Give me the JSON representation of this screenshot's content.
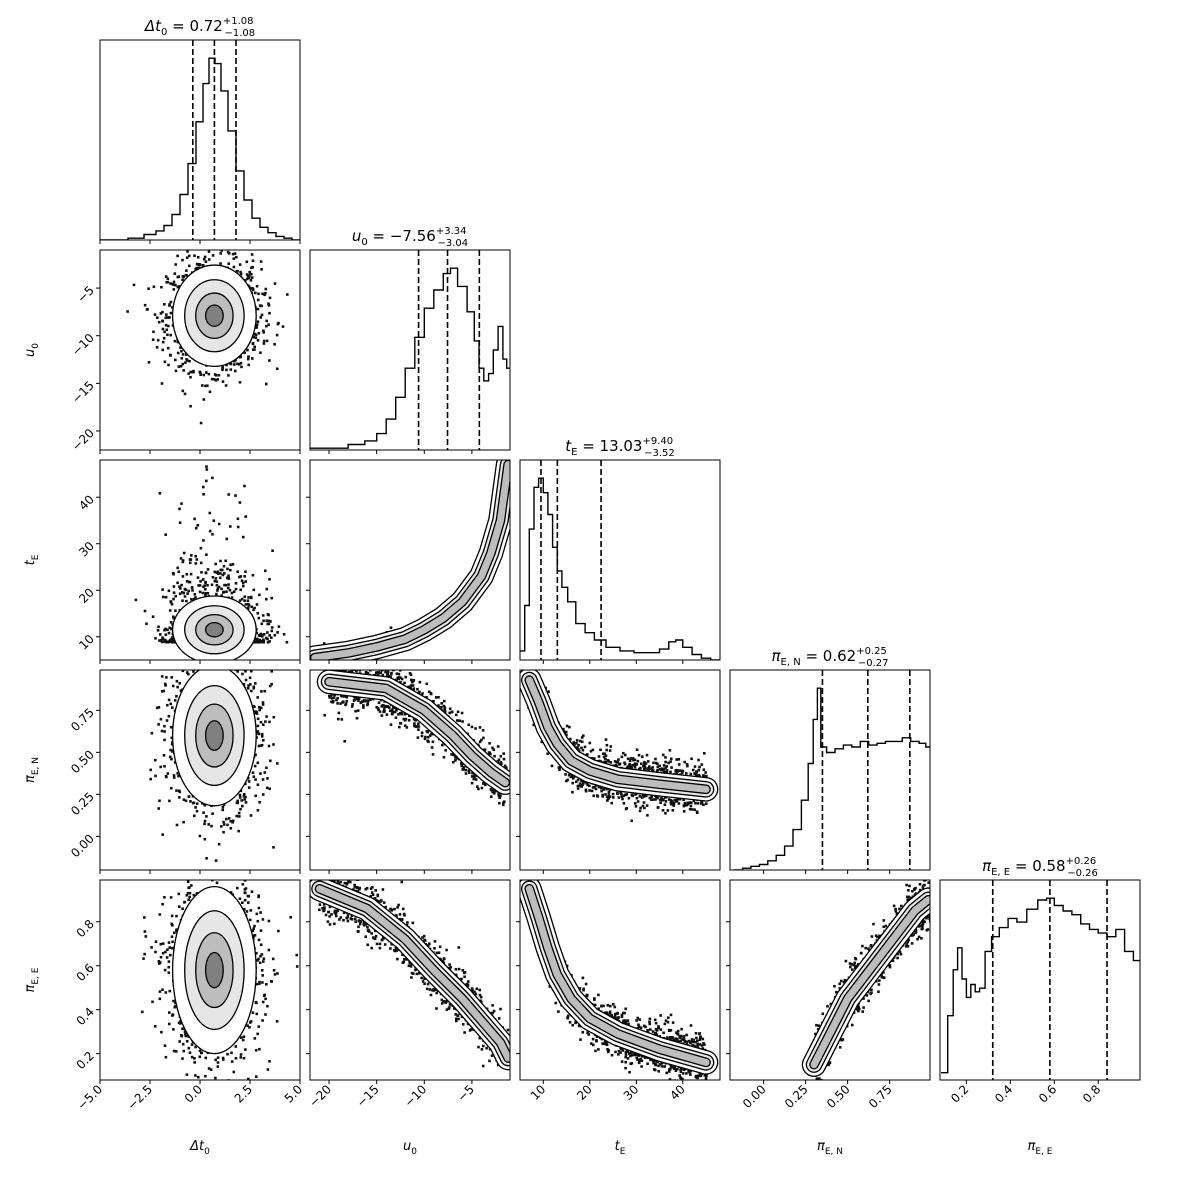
{
  "chart_data": {
    "type": "corner",
    "parameters": [
      {
        "key": "dt0",
        "base": "Δt",
        "sub": "0",
        "estimate": "0.72",
        "plus": "+1.08",
        "minus": "−1.08",
        "range": [
          -5.0,
          5.0
        ],
        "ticks": [
          -5.0,
          -2.5,
          0.0,
          2.5,
          5.0
        ],
        "tick_labels": [
          "−5.0",
          "−2.5",
          "0.0",
          "2.5",
          "5.0"
        ],
        "quantiles": [
          -0.36,
          0.72,
          1.8
        ]
      },
      {
        "key": "u0",
        "base": "u",
        "sub": "0",
        "estimate": "−7.56",
        "plus": "+3.34",
        "minus": "−3.04",
        "range": [
          -22.0,
          -1.0
        ],
        "ticks": [
          -20,
          -15,
          -10,
          -5
        ],
        "tick_labels": [
          "−20",
          "−15",
          "−10",
          "−5"
        ],
        "quantiles": [
          -10.6,
          -7.56,
          -4.22
        ]
      },
      {
        "key": "tE",
        "base": "t",
        "sub": "E",
        "estimate": "13.03",
        "plus": "+9.40",
        "minus": "−3.52",
        "range": [
          5.0,
          48.0
        ],
        "ticks": [
          10,
          20,
          30,
          40
        ],
        "tick_labels": [
          "10",
          "20",
          "30",
          "40"
        ],
        "quantiles": [
          9.51,
          13.03,
          22.43
        ]
      },
      {
        "key": "piEN",
        "base": "π",
        "sub": "E, N",
        "estimate": "0.62",
        "plus": "+0.25",
        "minus": "−0.27",
        "range": [
          -0.2,
          0.99
        ],
        "ticks": [
          0.0,
          0.25,
          0.5,
          0.75
        ],
        "tick_labels": [
          "0.00",
          "0.25",
          "0.50",
          "0.75"
        ],
        "quantiles": [
          0.35,
          0.62,
          0.87
        ]
      },
      {
        "key": "piEE",
        "base": "π",
        "sub": "E, E",
        "estimate": "0.58",
        "plus": "+0.26",
        "minus": "−0.26",
        "range": [
          0.08,
          0.99
        ],
        "ticks": [
          0.2,
          0.4,
          0.6,
          0.8
        ],
        "tick_labels": [
          "0.2",
          "0.4",
          "0.6",
          "0.8"
        ],
        "quantiles": [
          0.32,
          0.58,
          0.84
        ]
      }
    ],
    "histograms": {
      "dt0": {
        "x": [
          -4.8,
          -4.0,
          -3.2,
          -2.4,
          -2.0,
          -1.6,
          -1.2,
          -0.8,
          -0.4,
          0.0,
          0.3,
          0.6,
          0.9,
          1.2,
          1.6,
          2.0,
          2.4,
          2.8,
          3.2,
          3.6,
          4.0,
          4.4,
          4.8
        ],
        "y": [
          0.0,
          0.0,
          0.01,
          0.03,
          0.05,
          0.08,
          0.14,
          0.25,
          0.42,
          0.65,
          0.86,
          1.0,
          0.97,
          0.82,
          0.6,
          0.38,
          0.22,
          0.12,
          0.07,
          0.04,
          0.02,
          0.01,
          0.0
        ]
      },
      "u0": {
        "x": [
          -21.5,
          -19.0,
          -17.0,
          -15.5,
          -14.5,
          -13.5,
          -12.5,
          -11.5,
          -10.5,
          -9.5,
          -8.5,
          -7.5,
          -7.0,
          -6.0,
          -5.0,
          -4.5,
          -4.0,
          -3.5,
          -3.0,
          -2.5,
          -2.0,
          -1.5,
          -1.2
        ],
        "y": [
          0.01,
          0.01,
          0.03,
          0.05,
          0.09,
          0.17,
          0.29,
          0.45,
          0.62,
          0.78,
          0.88,
          0.97,
          1.0,
          0.9,
          0.76,
          0.6,
          0.45,
          0.38,
          0.42,
          0.55,
          0.68,
          0.5,
          0.45
        ]
      },
      "tE": {
        "x": [
          5.5,
          6.5,
          7.5,
          8.5,
          9.5,
          10.5,
          11.5,
          12.5,
          13.5,
          14.5,
          16.0,
          18.0,
          20.0,
          22.0,
          25.0,
          28.0,
          31.0,
          34.0,
          36.0,
          38.0,
          39.0,
          41.0,
          43.0,
          45.0,
          47.0
        ],
        "y": [
          0.05,
          0.3,
          0.72,
          0.95,
          1.0,
          0.92,
          0.8,
          0.62,
          0.49,
          0.4,
          0.32,
          0.2,
          0.15,
          0.11,
          0.07,
          0.05,
          0.04,
          0.04,
          0.06,
          0.1,
          0.11,
          0.07,
          0.03,
          0.01,
          0.0
        ]
      },
      "piEN": {
        "x": [
          -0.15,
          -0.1,
          -0.05,
          0.0,
          0.05,
          0.1,
          0.15,
          0.2,
          0.25,
          0.28,
          0.31,
          0.33,
          0.35,
          0.4,
          0.45,
          0.5,
          0.55,
          0.6,
          0.65,
          0.7,
          0.75,
          0.8,
          0.85,
          0.9,
          0.95,
          0.98
        ],
        "y": [
          0.0,
          0.01,
          0.02,
          0.03,
          0.05,
          0.08,
          0.13,
          0.22,
          0.38,
          0.58,
          0.82,
          0.99,
          0.67,
          0.64,
          0.66,
          0.68,
          0.67,
          0.7,
          0.68,
          0.69,
          0.7,
          0.7,
          0.72,
          0.7,
          0.69,
          0.67
        ]
      },
      "piEE": {
        "x": [
          0.1,
          0.13,
          0.15,
          0.17,
          0.19,
          0.21,
          0.23,
          0.25,
          0.27,
          0.3,
          0.33,
          0.37,
          0.41,
          0.45,
          0.5,
          0.55,
          0.58,
          0.62,
          0.66,
          0.7,
          0.74,
          0.78,
          0.82,
          0.86,
          0.9,
          0.94,
          0.98
        ],
        "y": [
          0.04,
          0.35,
          0.6,
          0.72,
          0.55,
          0.45,
          0.52,
          0.48,
          0.5,
          0.7,
          0.78,
          0.83,
          0.88,
          0.86,
          0.93,
          0.98,
          0.99,
          0.95,
          0.92,
          0.9,
          0.85,
          0.82,
          0.8,
          0.78,
          0.82,
          0.7,
          0.65
        ]
      }
    },
    "pairs": [
      {
        "x": "dt0",
        "y": "u0",
        "center": [
          0.72,
          -7.9
        ],
        "spread": [
          1.1,
          2.8
        ],
        "shape": "gaussian"
      },
      {
        "x": "dt0",
        "y": "tE",
        "center": [
          0.72,
          11.5
        ],
        "spread": [
          1.1,
          4.5
        ],
        "shape": "skew-up"
      },
      {
        "x": "dt0",
        "y": "piEN",
        "center": [
          0.72,
          0.6
        ],
        "spread": [
          1.1,
          0.22
        ],
        "shape": "gaussian"
      },
      {
        "x": "dt0",
        "y": "piEE",
        "center": [
          0.72,
          0.58
        ],
        "spread": [
          1.1,
          0.2
        ],
        "shape": "gaussian"
      },
      {
        "x": "u0",
        "y": "tE",
        "shape": "curve",
        "points": [
          [
            -21.5,
            5.5
          ],
          [
            -18,
            6.5
          ],
          [
            -15,
            7.8
          ],
          [
            -12,
            9.5
          ],
          [
            -10,
            11.5
          ],
          [
            -8,
            14.0
          ],
          [
            -6,
            17.5
          ],
          [
            -4,
            23.0
          ],
          [
            -3,
            28.0
          ],
          [
            -2,
            35.0
          ],
          [
            -1.2,
            47.0
          ]
        ]
      },
      {
        "x": "u0",
        "y": "piEN",
        "shape": "band",
        "points": [
          [
            -20,
            0.92
          ],
          [
            -14,
            0.88
          ],
          [
            -10,
            0.75
          ],
          [
            -7,
            0.6
          ],
          [
            -5,
            0.48
          ],
          [
            -3,
            0.38
          ],
          [
            -1.5,
            0.32
          ]
        ]
      },
      {
        "x": "u0",
        "y": "piEE",
        "shape": "band",
        "points": [
          [
            -21,
            0.95
          ],
          [
            -16,
            0.86
          ],
          [
            -12,
            0.72
          ],
          [
            -9,
            0.58
          ],
          [
            -6,
            0.45
          ],
          [
            -4,
            0.35
          ],
          [
            -2,
            0.25
          ],
          [
            -1.2,
            0.18
          ]
        ]
      },
      {
        "x": "tE",
        "y": "piEN",
        "shape": "band",
        "points": [
          [
            7,
            0.93
          ],
          [
            9,
            0.8
          ],
          [
            11,
            0.65
          ],
          [
            13,
            0.55
          ],
          [
            16,
            0.45
          ],
          [
            20,
            0.39
          ],
          [
            26,
            0.34
          ],
          [
            35,
            0.31
          ],
          [
            45,
            0.28
          ]
        ]
      },
      {
        "x": "tE",
        "y": "piEE",
        "shape": "band",
        "points": [
          [
            7,
            0.95
          ],
          [
            9,
            0.82
          ],
          [
            11,
            0.68
          ],
          [
            13,
            0.56
          ],
          [
            16,
            0.45
          ],
          [
            20,
            0.36
          ],
          [
            26,
            0.29
          ],
          [
            35,
            0.22
          ],
          [
            45,
            0.16
          ]
        ]
      },
      {
        "x": "piEN",
        "y": "piEE",
        "shape": "band",
        "points": [
          [
            0.3,
            0.15
          ],
          [
            0.4,
            0.3
          ],
          [
            0.5,
            0.45
          ],
          [
            0.6,
            0.55
          ],
          [
            0.7,
            0.65
          ],
          [
            0.8,
            0.75
          ],
          [
            0.9,
            0.85
          ],
          [
            0.98,
            0.9
          ]
        ]
      }
    ]
  }
}
